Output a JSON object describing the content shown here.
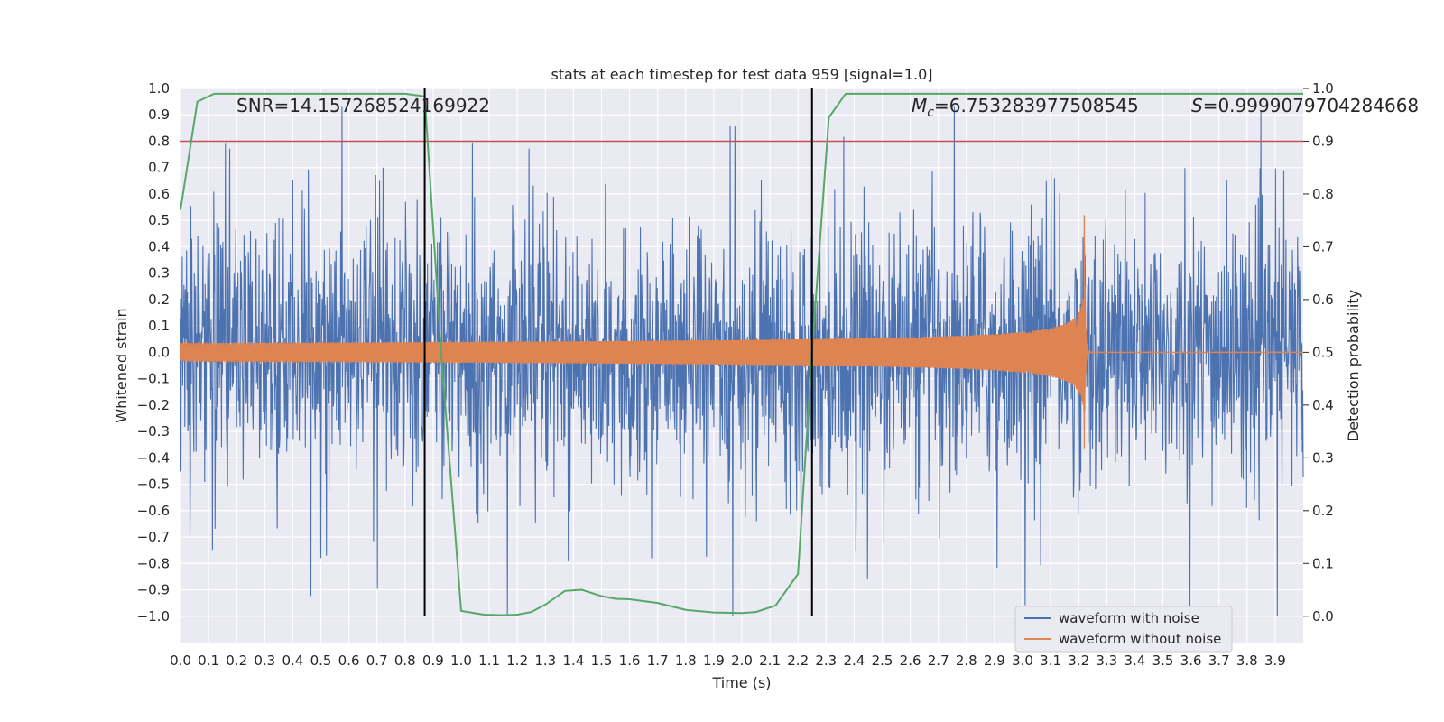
{
  "chart_data": {
    "type": "line",
    "title": "stats at each timestep for test data 959 [signal=1.0]",
    "xlabel": "Time (s)",
    "ylabel": "Whitened strain",
    "ylabel_right": "Detection probability",
    "xlim": [
      0.0,
      4.0
    ],
    "ylim": [
      -1.1,
      1.0
    ],
    "ylim_right": [
      -0.05,
      1.0
    ],
    "x_ticks": [
      "0.0",
      "0.1",
      "0.2",
      "0.3",
      "0.4",
      "0.5",
      "0.6",
      "0.7",
      "0.8",
      "0.9",
      "1.0",
      "1.1",
      "1.2",
      "1.3",
      "1.4",
      "1.5",
      "1.6",
      "1.7",
      "1.8",
      "1.9",
      "2.0",
      "2.1",
      "2.2",
      "2.3",
      "2.4",
      "2.5",
      "2.6",
      "2.7",
      "2.8",
      "2.9",
      "3.0",
      "3.1",
      "3.2",
      "3.3",
      "3.4",
      "3.5",
      "3.6",
      "3.7",
      "3.8",
      "3.9"
    ],
    "y_ticks": [
      "1.0",
      "0.9",
      "0.8",
      "0.7",
      "0.6",
      "0.5",
      "0.4",
      "0.3",
      "0.2",
      "0.1",
      "0.0",
      "−0.1",
      "−0.2",
      "−0.3",
      "−0.4",
      "−0.5",
      "−0.6",
      "−0.7",
      "−0.8",
      "−0.9",
      "−1.0"
    ],
    "y_ticks_right": [
      "1.0",
      "0.9",
      "0.8",
      "0.7",
      "0.6",
      "0.5",
      "0.4",
      "0.3",
      "0.2",
      "0.1",
      "0.0"
    ],
    "grid": true,
    "legend_position": "lower-right",
    "annotations": {
      "snr": "SNR=14.157268524169922",
      "mc_symbol": "M",
      "mc_sub": "c",
      "mc_value": "=6.753283977508545",
      "s_symbol": "S",
      "s_value": "=0.9999079704284668"
    },
    "series": [
      {
        "name": "waveform with noise",
        "color": "#4c72b0",
        "description_range": [
          -1.0,
          0.95
        ]
      },
      {
        "name": "waveform without noise",
        "color": "#dd8452",
        "merger_time": 3.22,
        "peak_amplitude": 0.52
      }
    ],
    "detection_probability": {
      "color": "#55a868",
      "x": [
        0.0,
        0.06,
        0.12,
        0.2,
        0.4,
        0.6,
        0.8,
        0.87,
        0.93,
        1.0,
        1.08,
        1.15,
        1.2,
        1.25,
        1.3,
        1.37,
        1.43,
        1.5,
        1.55,
        1.6,
        1.7,
        1.8,
        1.9,
        2.0,
        2.05,
        2.12,
        2.2,
        2.25,
        2.31,
        2.37,
        2.5,
        3.0,
        3.5,
        4.0
      ],
      "y": [
        0.77,
        0.975,
        0.99,
        0.99,
        0.99,
        0.99,
        0.99,
        0.985,
        0.49,
        0.01,
        0.003,
        0.002,
        0.003,
        0.008,
        0.022,
        0.048,
        0.05,
        0.038,
        0.033,
        0.032,
        0.025,
        0.012,
        0.007,
        0.006,
        0.008,
        0.02,
        0.08,
        0.5,
        0.945,
        0.99,
        0.99,
        0.99,
        0.99,
        0.99
      ]
    },
    "threshold_line": {
      "value": 0.9,
      "axis": "right",
      "color": "#c44e52"
    },
    "vertical_lines": [
      0.87,
      2.25
    ],
    "legend": [
      "waveform with noise",
      "waveform without noise"
    ]
  }
}
